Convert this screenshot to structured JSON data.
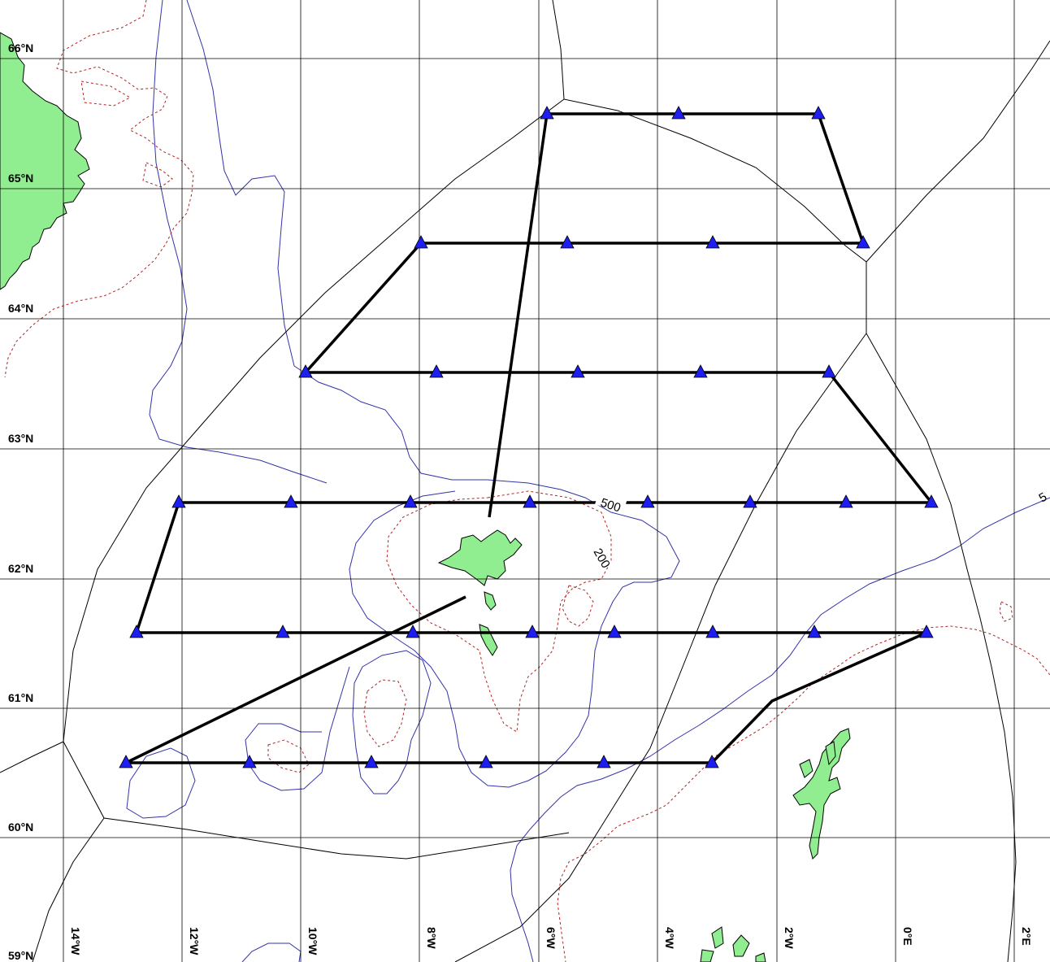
{
  "map": {
    "lat_labels": [
      "66°N",
      "65°N",
      "64°N",
      "63°N",
      "62°N",
      "61°N",
      "60°N",
      "59°N"
    ],
    "lon_labels": [
      "14°W",
      "12°W",
      "10°W",
      "8°W",
      "6°W",
      "4°W",
      "2°W",
      "0°E",
      "2°E"
    ],
    "contour_labels": [
      "500",
      "200",
      "5"
    ],
    "colors": {
      "land": "#90ee90",
      "depth_500": "#3333aa",
      "depth_200": "#b22222",
      "station": "#1e1ef0",
      "transect": "#000000"
    },
    "icons": {
      "station": "triangle-icon"
    }
  }
}
